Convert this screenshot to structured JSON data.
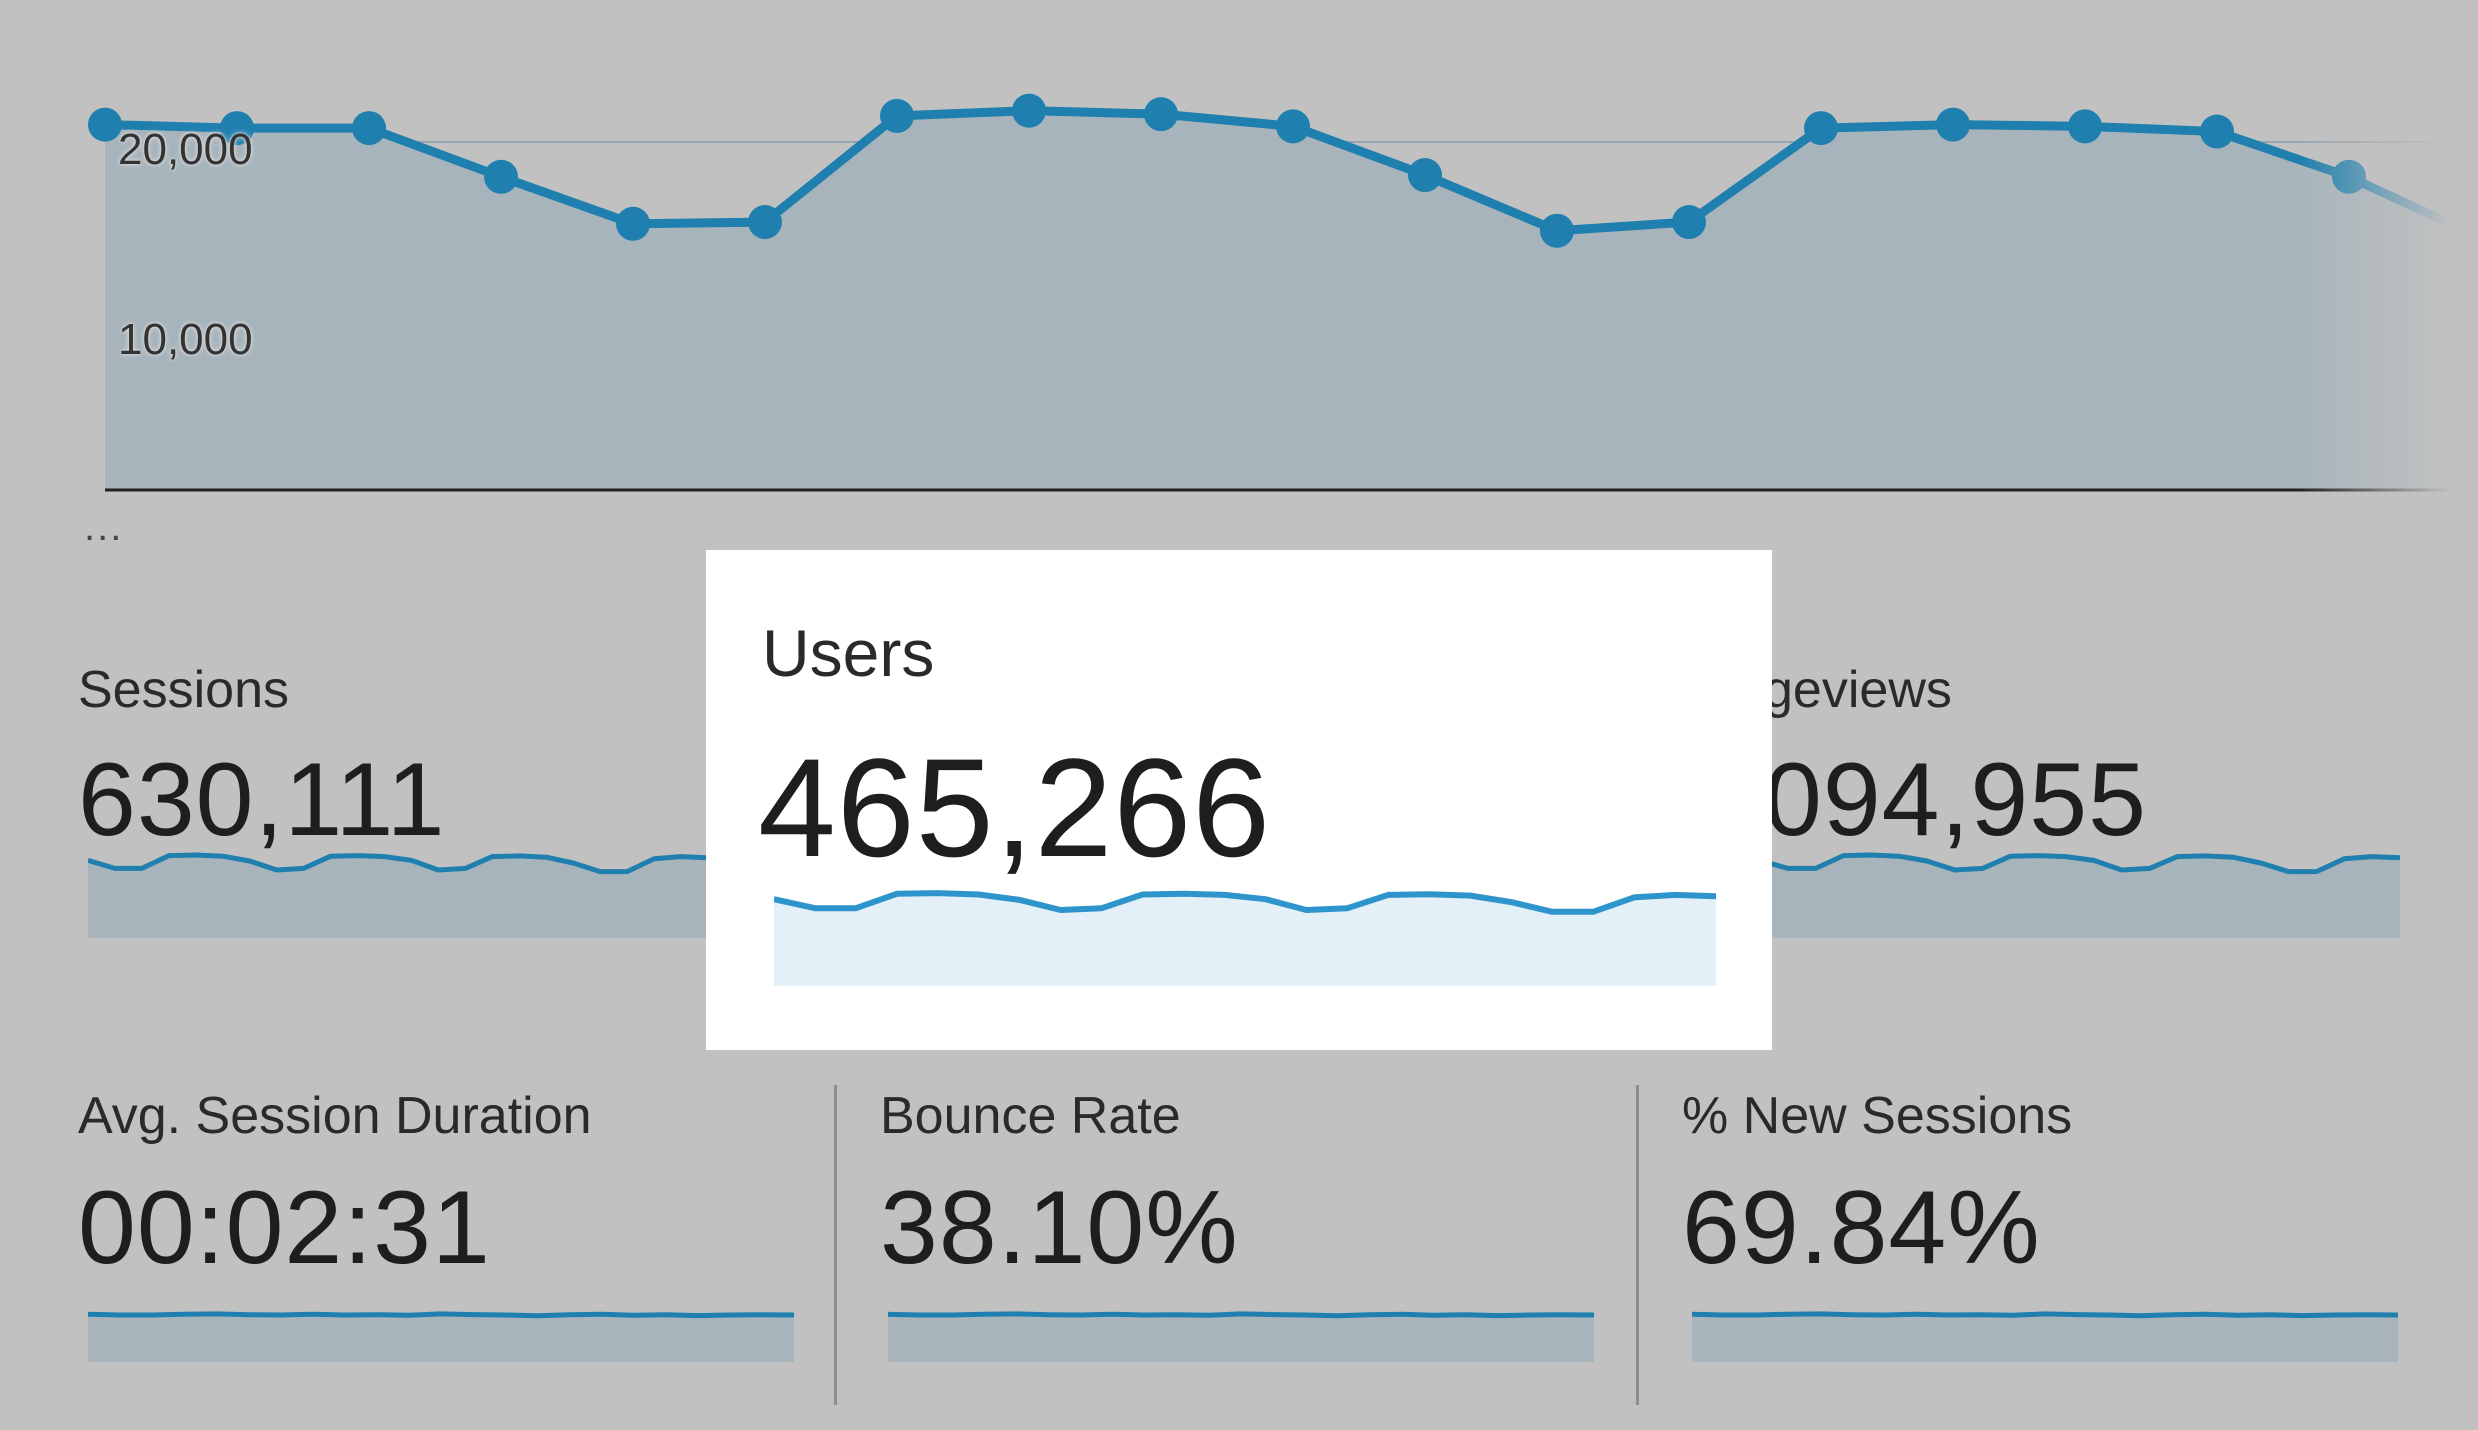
{
  "chart": {
    "y_ticks": [
      "20,000",
      "10,000"
    ],
    "ellipsis": "...",
    "series": [
      21000,
      20800,
      20800,
      18000,
      15300,
      15400,
      21500,
      21800,
      21600,
      20900,
      18100,
      14900,
      15400,
      20800,
      21000,
      20900,
      20600,
      18000,
      14500,
      15300
    ],
    "ylim": [
      0,
      25000
    ],
    "line_color": "#1f7fae",
    "fill_color": "#a7b4bc"
  },
  "metrics": [
    {
      "title": "Sessions",
      "value": "630,111"
    },
    {
      "title": "Users",
      "value": "465,266"
    },
    {
      "title": "geviews",
      "value": "094,955"
    },
    {
      "title": "Avg. Session Duration",
      "value": "00:02:31"
    },
    {
      "title": "Bounce Rate",
      "value": "38.10%"
    },
    {
      "title": "% New Sessions",
      "value": "69.84%"
    }
  ],
  "sparks": {
    "wavy": [
      0.8,
      0.55,
      0.55,
      0.95,
      0.97,
      0.93,
      0.78,
      0.5,
      0.55,
      0.93,
      0.95,
      0.92,
      0.8,
      0.5,
      0.55,
      0.92,
      0.94,
      0.9,
      0.72,
      0.45,
      0.45,
      0.85,
      0.92,
      0.88
    ],
    "flat": [
      0.55,
      0.5,
      0.5,
      0.56,
      0.58,
      0.52,
      0.5,
      0.55,
      0.5,
      0.52,
      0.48,
      0.58,
      0.53,
      0.5,
      0.45,
      0.52,
      0.55,
      0.48,
      0.52,
      0.46,
      0.5,
      0.52,
      0.5
    ],
    "line_color": "#1f7fae",
    "gray_fill": "#a7b4bc",
    "blue_fill": "#e3f0f7",
    "blue_line": "#2d95cc"
  }
}
